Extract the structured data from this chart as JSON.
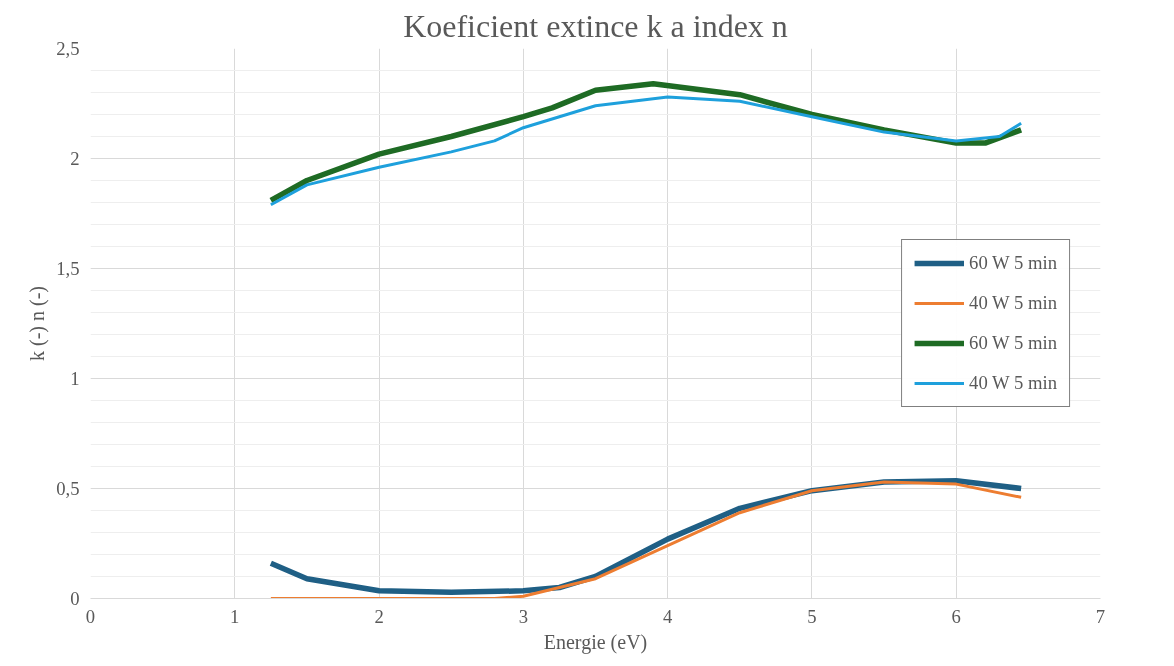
{
  "chart_data": {
    "type": "line",
    "title": "Koeficient extince k a index n",
    "xlabel": "Energie (eV)",
    "ylabel": "k (-) n (-)",
    "xlim": [
      0,
      7
    ],
    "xticks": [
      0,
      1,
      2,
      3,
      4,
      5,
      6,
      7
    ],
    "ylim": [
      0,
      2.5
    ],
    "yticks": [
      {
        "value": 0,
        "label": "0"
      },
      {
        "value": 0.5,
        "label": "0,5"
      },
      {
        "value": 1,
        "label": "1"
      },
      {
        "value": 1.5,
        "label": "1,5"
      },
      {
        "value": 2,
        "label": "2"
      },
      {
        "value": 2.5,
        "label": "2,5"
      }
    ],
    "grid": true,
    "legend": "right",
    "marker": "none",
    "line_style": "solid",
    "series": [
      {
        "name": "60 W 5 min",
        "color": "#1f5f85",
        "x": [
          1.25,
          1.5,
          2,
          2.5,
          3,
          3.25,
          3.5,
          4,
          4.5,
          5,
          5.5,
          6,
          6.45
        ],
        "values": [
          0.16,
          0.09,
          0.035,
          0.028,
          0.035,
          0.05,
          0.1,
          0.27,
          0.41,
          0.49,
          0.53,
          0.535,
          0.5
        ]
      },
      {
        "name": "40 W 5 min",
        "color": "#ed7d31",
        "x": [
          1.25,
          2,
          2.8,
          3,
          3.25,
          3.5,
          4,
          4.5,
          5,
          5.5,
          6,
          6.45
        ],
        "values": [
          0,
          0,
          0,
          0.01,
          0.05,
          0.09,
          0.24,
          0.39,
          0.49,
          0.53,
          0.52,
          0.46
        ]
      },
      {
        "name": "60 W 5 min",
        "color": "#1e6b24",
        "x": [
          1.25,
          1.5,
          2,
          2.5,
          3,
          3.2,
          3.5,
          3.9,
          4.5,
          5,
          5.5,
          6,
          6.2,
          6.45
        ],
        "values": [
          1.81,
          1.9,
          2.02,
          2.1,
          2.19,
          2.23,
          2.31,
          2.34,
          2.29,
          2.2,
          2.13,
          2.07,
          2.07,
          2.13
        ]
      },
      {
        "name": "40 W 5 min",
        "color": "#1ea0dc",
        "x": [
          1.25,
          1.5,
          2,
          2.5,
          2.8,
          3,
          3.5,
          4,
          4.5,
          5,
          5.5,
          6,
          6.3,
          6.45
        ],
        "values": [
          1.79,
          1.88,
          1.96,
          2.03,
          2.08,
          2.14,
          2.24,
          2.28,
          2.26,
          2.19,
          2.12,
          2.08,
          2.1,
          2.16
        ]
      }
    ]
  }
}
